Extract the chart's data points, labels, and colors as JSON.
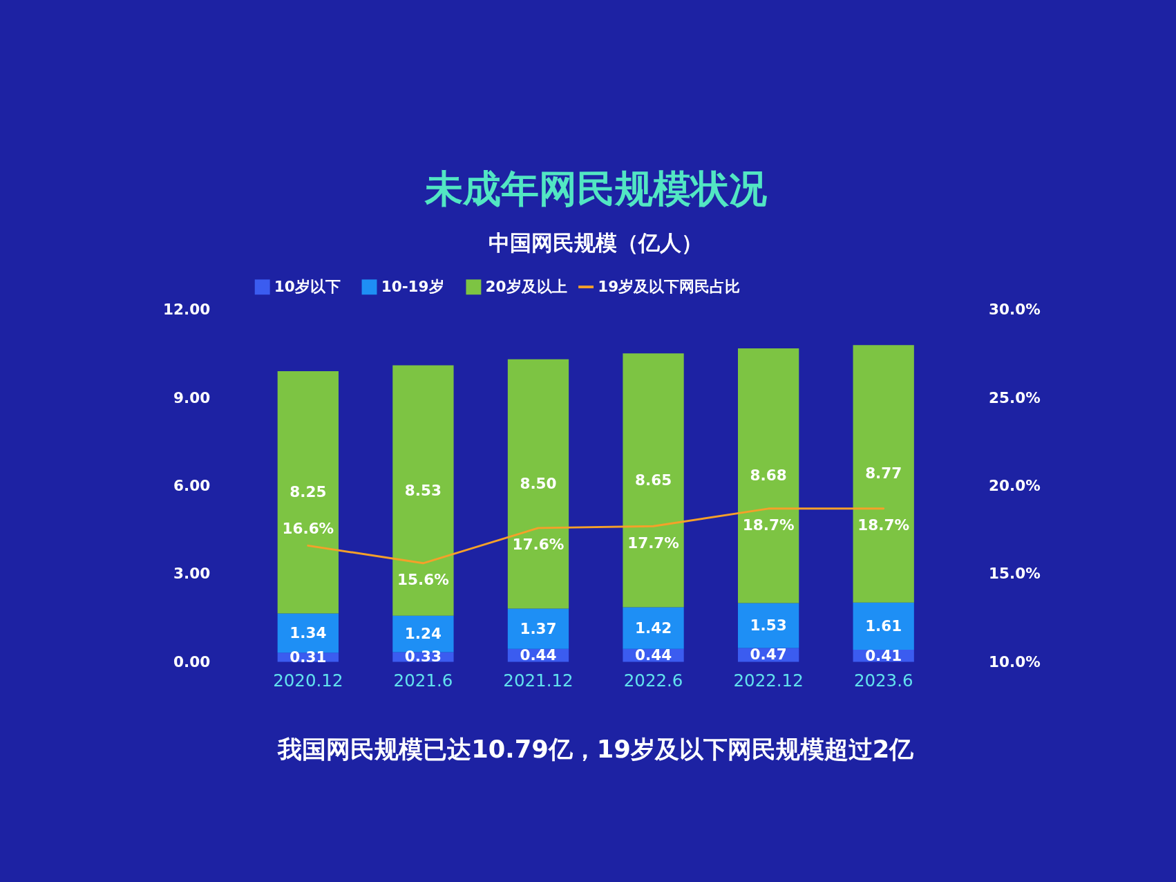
{
  "chart_data": {
    "type": "bar",
    "title": "未成年网民规模状况",
    "subtitle": "中国网民规模（亿人）",
    "categories": [
      "2020.12",
      "2021.6",
      "2021.12",
      "2022.6",
      "2022.12",
      "2023.6"
    ],
    "stacked": true,
    "series": [
      {
        "name": "10岁以下",
        "color": "#3b5cf0",
        "values": [
          0.31,
          0.33,
          0.44,
          0.44,
          0.47,
          0.41
        ],
        "value_labels": [
          "0.31",
          "0.33",
          "0.44",
          "0.44",
          "0.47",
          "0.41"
        ]
      },
      {
        "name": "10-19岁",
        "color": "#1e8ff5",
        "values": [
          1.34,
          1.24,
          1.37,
          1.42,
          1.53,
          1.61
        ],
        "value_labels": [
          "1.34",
          "1.24",
          "1.37",
          "1.42",
          "1.53",
          "1.61"
        ]
      },
      {
        "name": "20岁及以上",
        "color": "#7dc443",
        "values": [
          8.25,
          8.53,
          8.5,
          8.65,
          8.68,
          8.77
        ],
        "value_labels": [
          "8.25",
          "8.53",
          "8.50",
          "8.65",
          "8.68",
          "8.77"
        ]
      },
      {
        "name": "19岁及以下网民占比",
        "type": "line",
        "axis": "y2",
        "color": "#f5a02a",
        "values": [
          16.6,
          15.6,
          17.6,
          17.7,
          18.7,
          18.7
        ],
        "value_labels": [
          "16.6%",
          "15.6%",
          "17.6%",
          "17.7%",
          "18.7%",
          "18.7%"
        ]
      }
    ],
    "ylim": [
      0,
      12
    ],
    "yticks": [
      {
        "value": 0,
        "label": "0.00"
      },
      {
        "value": 3,
        "label": "3.00"
      },
      {
        "value": 6,
        "label": "6.00"
      },
      {
        "value": 9,
        "label": "9.00"
      },
      {
        "value": 12,
        "label": "12.00"
      }
    ],
    "y2lim": [
      10,
      30
    ],
    "y2ticks": [
      {
        "value": 10,
        "label": "10.0%"
      },
      {
        "value": 15,
        "label": "15.0%"
      },
      {
        "value": 20,
        "label": "20.0%"
      },
      {
        "value": 25,
        "label": "25.0%"
      },
      {
        "value": 30,
        "label": "30.0%"
      }
    ],
    "legend": "top",
    "grid": false,
    "annotations": [
      "我国网民规模已达10.79亿，19岁及以下网民规模超过2亿"
    ]
  }
}
